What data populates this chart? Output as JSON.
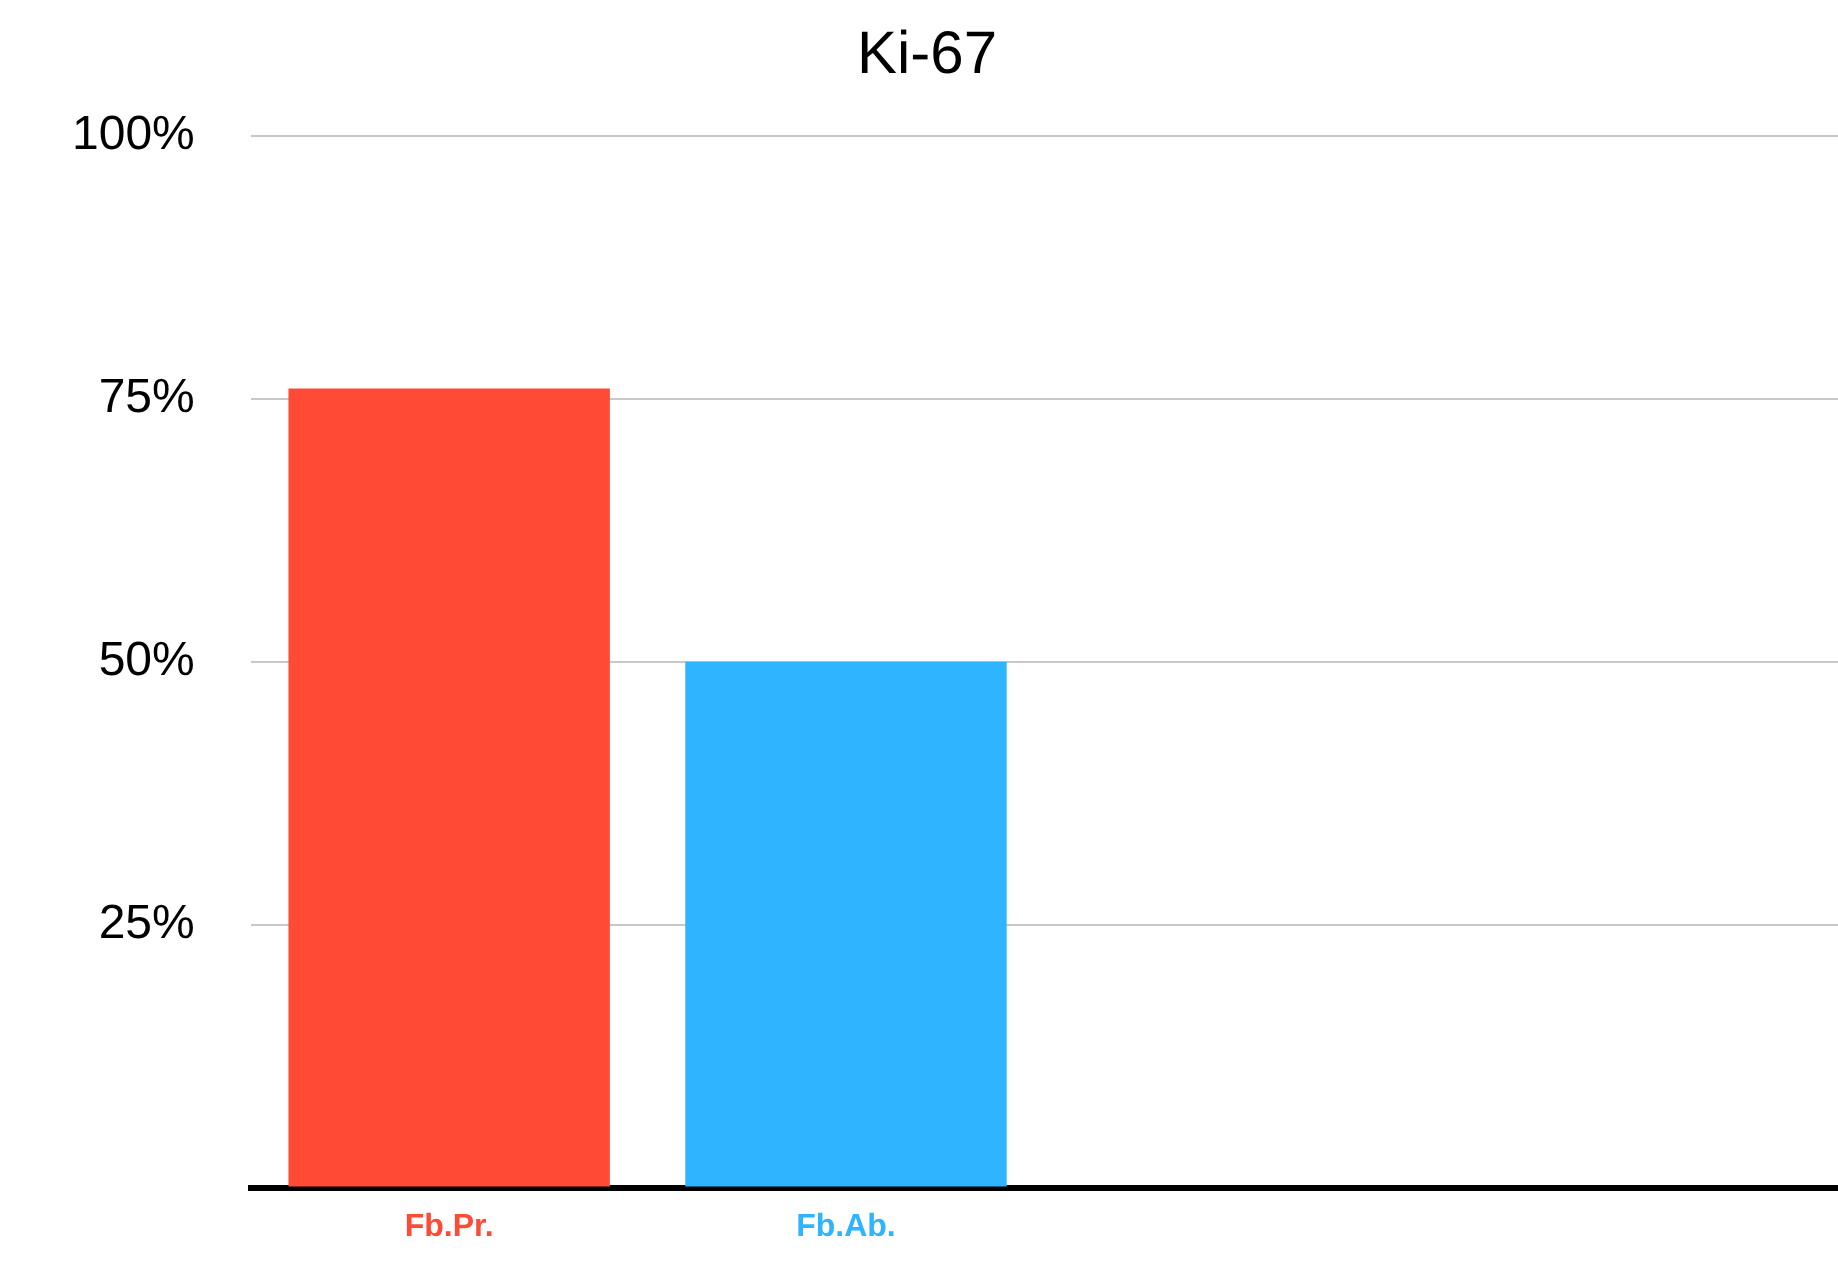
{
  "chart_data": {
    "type": "bar",
    "title": "Ki-67",
    "categories": [
      "Fb.Pr.",
      "Fb.Ab.",
      null,
      null
    ],
    "values": [
      76,
      50,
      null,
      null
    ],
    "colors": [
      "#ff4a35",
      "#2fb4ff",
      "#888888",
      "#888888"
    ],
    "ylim": [
      0,
      100
    ],
    "yticks": [
      {
        "value": 0,
        "label": null
      },
      {
        "value": 25,
        "label": "25%"
      },
      {
        "value": 50,
        "label": "50%"
      },
      {
        "value": 75,
        "label": "75%"
      },
      {
        "value": 100,
        "label": "100%"
      }
    ],
    "grid": "y",
    "legend": false
  }
}
